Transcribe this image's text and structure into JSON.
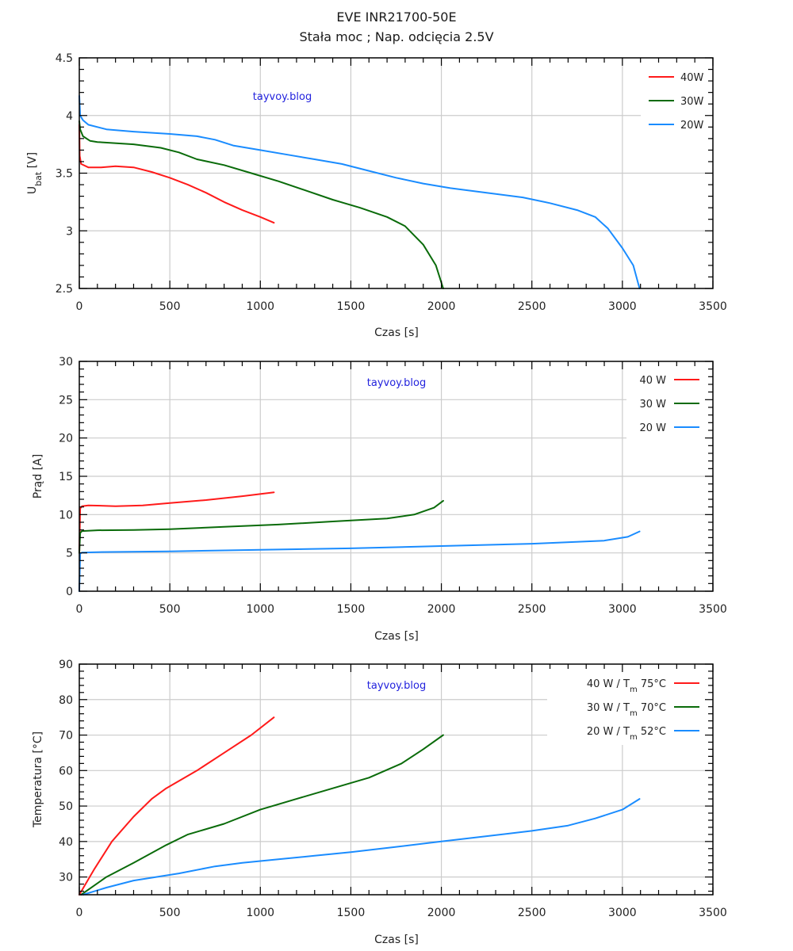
{
  "title": {
    "line1": "EVE INR21700-50E",
    "line2": "Stała moc  ;  Nap. odcięcia 2.5V"
  },
  "colors": {
    "red": "#ff1a1a",
    "green": "#0a6b0a",
    "blue": "#1a8cff",
    "watermark": "#2222dd"
  },
  "chart_data": [
    {
      "type": "line",
      "title": "",
      "xlabel": "Czas [s]",
      "ylabel": "U_bat [V]",
      "ylabel_main": "U",
      "ylabel_sub": "bat",
      "ylabel_tail": " [V]",
      "xlim": [
        0,
        3500
      ],
      "ylim": [
        2.5,
        4.5
      ],
      "xticks": [
        0,
        500,
        1000,
        1500,
        2000,
        2500,
        3000,
        3500
      ],
      "xtick_labels": [
        "0",
        "500",
        "1000",
        "1500",
        "2000",
        "2500",
        "3000",
        "3500"
      ],
      "yticks": [
        2.5,
        3,
        3.5,
        4,
        4.5
      ],
      "ytick_labels": [
        "2.5",
        "3",
        "3.5",
        "4",
        "4.5"
      ],
      "grid": true,
      "legend_position": "top-right",
      "legend_style": "line-left",
      "watermark": "tayvoy.blog",
      "series": [
        {
          "name": "40W",
          "color": "#ff1a1a",
          "x": [
            0,
            2,
            10,
            50,
            120,
            200,
            300,
            400,
            500,
            600,
            700,
            800,
            900,
            1000,
            1075
          ],
          "y": [
            3.92,
            3.65,
            3.58,
            3.55,
            3.55,
            3.56,
            3.55,
            3.51,
            3.46,
            3.4,
            3.33,
            3.25,
            3.18,
            3.12,
            3.07
          ]
        },
        {
          "name": "30W",
          "color": "#0a6b0a",
          "x": [
            0,
            5,
            20,
            60,
            100,
            300,
            450,
            550,
            650,
            800,
            950,
            1100,
            1250,
            1400,
            1550,
            1700,
            1800,
            1900,
            1970,
            2010
          ],
          "y": [
            3.95,
            3.88,
            3.82,
            3.78,
            3.77,
            3.75,
            3.72,
            3.68,
            3.62,
            3.57,
            3.5,
            3.43,
            3.35,
            3.27,
            3.2,
            3.12,
            3.04,
            2.88,
            2.7,
            2.5
          ]
        },
        {
          "name": "20W",
          "color": "#1a8cff",
          "x": [
            0,
            5,
            20,
            50,
            150,
            300,
            500,
            650,
            750,
            850,
            1000,
            1150,
            1300,
            1450,
            1600,
            1750,
            1900,
            2050,
            2250,
            2450,
            2600,
            2750,
            2850,
            2920,
            3000,
            3060,
            3095
          ],
          "y": [
            4.17,
            4.0,
            3.96,
            3.92,
            3.88,
            3.86,
            3.84,
            3.82,
            3.79,
            3.74,
            3.7,
            3.66,
            3.62,
            3.58,
            3.52,
            3.46,
            3.41,
            3.37,
            3.33,
            3.29,
            3.24,
            3.18,
            3.12,
            3.02,
            2.85,
            2.7,
            2.5
          ]
        }
      ]
    },
    {
      "type": "line",
      "title": "",
      "xlabel": "Czas [s]",
      "ylabel": "Prąd [A]",
      "xlim": [
        0,
        3500
      ],
      "ylim": [
        0,
        30
      ],
      "xticks": [
        0,
        500,
        1000,
        1500,
        2000,
        2500,
        3000,
        3500
      ],
      "xtick_labels": [
        "0",
        "500",
        "1000",
        "1500",
        "2000",
        "2500",
        "3000",
        "3500"
      ],
      "yticks": [
        0,
        5,
        10,
        15,
        20,
        25,
        30
      ],
      "ytick_labels": [
        "0",
        "5",
        "10",
        "15",
        "20",
        "25",
        "30"
      ],
      "grid": true,
      "legend_position": "top-right",
      "legend_style": "line-right",
      "watermark": "tayvoy.blog",
      "series": [
        {
          "name": "40 W",
          "color": "#ff1a1a",
          "x": [
            0,
            5,
            15,
            50,
            200,
            350,
            500,
            700,
            900,
            1075
          ],
          "y": [
            5.0,
            10.8,
            11.1,
            11.2,
            11.1,
            11.2,
            11.5,
            11.9,
            12.4,
            12.9
          ]
        },
        {
          "name": "30 W",
          "color": "#0a6b0a",
          "x": [
            0,
            5,
            15,
            100,
            300,
            500,
            800,
            1100,
            1400,
            1700,
            1850,
            1960,
            2010
          ],
          "y": [
            5.0,
            7.6,
            7.85,
            7.95,
            8.0,
            8.1,
            8.4,
            8.7,
            9.1,
            9.5,
            10.0,
            10.9,
            11.8
          ]
        },
        {
          "name": "20 W",
          "color": "#1a8cff",
          "x": [
            0,
            5,
            15,
            100,
            500,
            1000,
            1500,
            2000,
            2500,
            2900,
            3030,
            3095
          ],
          "y": [
            0.0,
            4.9,
            5.05,
            5.1,
            5.2,
            5.4,
            5.6,
            5.9,
            6.2,
            6.6,
            7.1,
            7.8
          ]
        }
      ]
    },
    {
      "type": "line",
      "title": "",
      "xlabel": "Czas [s]",
      "ylabel": "Temperatura [°C]",
      "xlim": [
        0,
        3500
      ],
      "ylim": [
        25,
        90
      ],
      "xticks": [
        0,
        500,
        1000,
        1500,
        2000,
        2500,
        3000,
        3500
      ],
      "xtick_labels": [
        "0",
        "500",
        "1000",
        "1500",
        "2000",
        "2500",
        "3000",
        "3500"
      ],
      "yticks": [
        30,
        40,
        50,
        60,
        70,
        80,
        90
      ],
      "ytick_labels": [
        "30",
        "40",
        "50",
        "60",
        "70",
        "80",
        "90"
      ],
      "grid": true,
      "legend_position": "top-right",
      "legend_style": "line-right",
      "watermark": "tayvoy.blog",
      "series": [
        {
          "name": "40 W  / T_m 75°C",
          "label_main": "40 W  / T",
          "label_sub": "m",
          "label_tail": " 75°C",
          "color": "#ff1a1a",
          "x": [
            0,
            80,
            180,
            300,
            400,
            480,
            650,
            800,
            950,
            1075
          ],
          "y": [
            25,
            32,
            40,
            47,
            52,
            55,
            60,
            65,
            70,
            75
          ]
        },
        {
          "name": "30 W  / T_m 70°C",
          "label_main": "30 W  / T",
          "label_sub": "m",
          "label_tail": " 70°C",
          "color": "#0a6b0a",
          "x": [
            10,
            150,
            300,
            480,
            600,
            800,
            1000,
            1200,
            1400,
            1600,
            1780,
            1900,
            2010
          ],
          "y": [
            25,
            30,
            34,
            39,
            42,
            45,
            49,
            52,
            55,
            58,
            62,
            66,
            70
          ]
        },
        {
          "name": "20 W  / T_m 52°C",
          "label_main": "20 W  / T",
          "label_sub": "m",
          "label_tail": " 52°C",
          "color": "#1a8cff",
          "x": [
            20,
            150,
            300,
            550,
            750,
            900,
            1100,
            1300,
            1500,
            1750,
            2000,
            2250,
            2500,
            2700,
            2850,
            3000,
            3095
          ],
          "y": [
            25,
            27,
            29,
            31,
            33,
            34,
            35,
            36,
            37,
            38.5,
            40,
            41.5,
            43,
            44.5,
            46.5,
            49,
            52
          ]
        }
      ]
    }
  ]
}
